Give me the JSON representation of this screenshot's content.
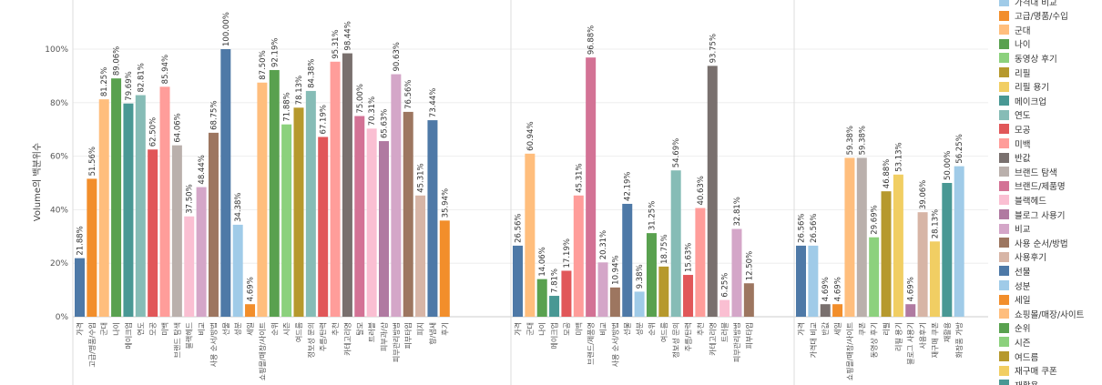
{
  "chart_data": {
    "type": "bar",
    "ylabel": "Volume의 백분위수",
    "ylim": [
      0,
      100
    ],
    "yticks": [
      "0%",
      "20%",
      "40%",
      "60%",
      "80%",
      "100%"
    ],
    "grid": true,
    "legend_position": "right",
    "panels": [
      {
        "bars": [
          {
            "category": "가격",
            "value": 21.88,
            "label": "21.88%",
            "color": "#4e79a7"
          },
          {
            "category": "고급/명품/수입",
            "value": 51.56,
            "label": "51.56%",
            "color": "#f28e2b"
          },
          {
            "category": "군대",
            "value": 81.25,
            "label": "81.25%",
            "color": "#ffbe7d"
          },
          {
            "category": "나이",
            "value": 89.06,
            "label": "89.06%",
            "color": "#59a14f"
          },
          {
            "category": "메이크업",
            "value": 79.69,
            "label": "79.69%",
            "color": "#499894"
          },
          {
            "category": "연도",
            "value": 82.81,
            "label": "82.81%",
            "color": "#86bcb6"
          },
          {
            "category": "모공",
            "value": 62.5,
            "label": "62.50%",
            "color": "#e15759"
          },
          {
            "category": "미백",
            "value": 85.94,
            "label": "85.94%",
            "color": "#ff9d9a"
          },
          {
            "category": "브랜드 탐색",
            "value": 64.06,
            "label": "64.06%",
            "color": "#bab0ac"
          },
          {
            "category": "블랙헤드",
            "value": 37.5,
            "label": "37.50%",
            "color": "#fabfd2"
          },
          {
            "category": "비교",
            "value": 48.44,
            "label": "48.44%",
            "color": "#d4a6c8"
          },
          {
            "category": "사용 순서/방법",
            "value": 68.75,
            "label": "68.75%",
            "color": "#9d7660"
          },
          {
            "category": "선물",
            "value": 100.0,
            "label": "100.00%",
            "color": "#4e79a7"
          },
          {
            "category": "성분",
            "value": 34.38,
            "label": "34.38%",
            "color": "#a0cbe8"
          },
          {
            "category": "세일",
            "value": 4.69,
            "label": "4.69%",
            "color": "#f28e2b"
          },
          {
            "category": "쇼핑몰/매장/사이트",
            "value": 87.5,
            "label": "87.50%",
            "color": "#ffbe7d"
          },
          {
            "category": "순위",
            "value": 92.19,
            "label": "92.19%",
            "color": "#59a14f"
          },
          {
            "category": "시즌",
            "value": 71.88,
            "label": "71.88%",
            "color": "#8cd17d"
          },
          {
            "category": "여드름",
            "value": 78.13,
            "label": "78.13%",
            "color": "#b6992d"
          },
          {
            "category": "정보성 문의",
            "value": 84.38,
            "label": "84.38%",
            "color": "#86bcb6"
          },
          {
            "category": "주름/탄력",
            "value": 67.19,
            "label": "67.19%",
            "color": "#e15759"
          },
          {
            "category": "추천",
            "value": 95.31,
            "label": "95.31%",
            "color": "#ff9d9a"
          },
          {
            "category": "카테고리명",
            "value": 98.44,
            "label": "98.44%",
            "color": "#79706e"
          },
          {
            "category": "탈모",
            "value": 75.0,
            "label": "75.00%",
            "color": "#d37295"
          },
          {
            "category": "트러블",
            "value": 70.31,
            "label": "70.31%",
            "color": "#fabfd2"
          },
          {
            "category": "피부과/샵",
            "value": 65.63,
            "label": "65.63%",
            "color": "#b07aa1"
          },
          {
            "category": "피부관리방법",
            "value": 90.63,
            "label": "90.63%",
            "color": "#d4a6c8"
          },
          {
            "category": "피부타입",
            "value": 76.56,
            "label": "76.56%",
            "color": "#9d7660"
          },
          {
            "category": "피지",
            "value": 45.31,
            "label": "45.31%",
            "color": "#d7b5a6"
          },
          {
            "category": "향/냄새",
            "value": 73.44,
            "label": "73.44%",
            "color": "#4e79a7"
          },
          {
            "category": "후기",
            "value": 35.94,
            "label": "35.94%",
            "color": "#f28e2b"
          }
        ]
      },
      {
        "bars": [
          {
            "category": "가격",
            "value": 26.56,
            "label": "26.56%",
            "color": "#4e79a7"
          },
          {
            "category": "군대",
            "value": 60.94,
            "label": "60.94%",
            "color": "#ffbe7d"
          },
          {
            "category": "나이",
            "value": 14.06,
            "label": "14.06%",
            "color": "#59a14f"
          },
          {
            "category": "메이크업",
            "value": 7.81,
            "label": "7.81%",
            "color": "#499894"
          },
          {
            "category": "모공",
            "value": 17.19,
            "label": "17.19%",
            "color": "#e15759"
          },
          {
            "category": "미백",
            "value": 45.31,
            "label": "45.31%",
            "color": "#ff9d9a"
          },
          {
            "category": "브랜드/제품명",
            "value": 96.88,
            "label": "96.88%",
            "color": "#d37295"
          },
          {
            "category": "비교",
            "value": 20.31,
            "label": "20.31%",
            "color": "#d4a6c8"
          },
          {
            "category": "사용 순서/방법",
            "value": 10.94,
            "label": "10.94%",
            "color": "#9d7660"
          },
          {
            "category": "선물",
            "value": 42.19,
            "label": "42.19%",
            "color": "#4e79a7"
          },
          {
            "category": "성분",
            "value": 9.38,
            "label": "9.38%",
            "color": "#a0cbe8"
          },
          {
            "category": "순위",
            "value": 31.25,
            "label": "31.25%",
            "color": "#59a14f"
          },
          {
            "category": "여드름",
            "value": 18.75,
            "label": "18.75%",
            "color": "#b6992d"
          },
          {
            "category": "정보성 문의",
            "value": 54.69,
            "label": "54.69%",
            "color": "#86bcb6"
          },
          {
            "category": "주름/탄력",
            "value": 15.63,
            "label": "15.63%",
            "color": "#e15759"
          },
          {
            "category": "추천",
            "value": 40.63,
            "label": "40.63%",
            "color": "#ff9d9a"
          },
          {
            "category": "카테고리명",
            "value": 93.75,
            "label": "93.75%",
            "color": "#79706e"
          },
          {
            "category": "트러블",
            "value": 6.25,
            "label": "6.25%",
            "color": "#fabfd2"
          },
          {
            "category": "피부관리방법",
            "value": 32.81,
            "label": "32.81%",
            "color": "#d4a6c8"
          },
          {
            "category": "피부타입",
            "value": 12.5,
            "label": "12.50%",
            "color": "#9d7660"
          }
        ]
      },
      {
        "bars": [
          {
            "category": "가격",
            "value": 26.56,
            "label": "26.56%",
            "color": "#4e79a7"
          },
          {
            "category": "가격대 비교",
            "value": 26.56,
            "label": "26.56%",
            "color": "#a0cbe8"
          },
          {
            "category": "반값",
            "value": 4.69,
            "label": "4.69%",
            "color": "#79706e"
          },
          {
            "category": "세일",
            "value": 4.69,
            "label": "4.69%",
            "color": "#f28e2b"
          },
          {
            "category": "쇼핑몰/매장/사이트",
            "value": 59.38,
            "label": "59.38%",
            "color": "#ffbe7d"
          },
          {
            "category": "쿠폰",
            "value": 59.38,
            "label": "59.38%",
            "color": "#bab0ac"
          },
          {
            "category": "동영상 후기",
            "value": 29.69,
            "label": "29.69%",
            "color": "#8cd17d"
          },
          {
            "category": "리필",
            "value": 46.88,
            "label": "46.88%",
            "color": "#b6992d"
          },
          {
            "category": "리필 용기",
            "value": 53.13,
            "label": "53.13%",
            "color": "#f1ce63"
          },
          {
            "category": "블로그 사용기",
            "value": 4.69,
            "label": "4.69%",
            "color": "#b07aa1"
          },
          {
            "category": "사용후기",
            "value": 39.06,
            "label": "39.06%",
            "color": "#d7b5a6"
          },
          {
            "category": "재구매 쿠폰",
            "value": 28.13,
            "label": "28.13%",
            "color": "#f1ce63"
          },
          {
            "category": "재활용",
            "value": 50.0,
            "label": "50.00%",
            "color": "#499894"
          },
          {
            "category": "화장품 가방",
            "value": 56.25,
            "label": "56.25%",
            "color": "#a0cbe8"
          }
        ]
      }
    ],
    "legend": [
      {
        "label": "가격대 비교",
        "color": "#a0cbe8"
      },
      {
        "label": "고급/명품/수입",
        "color": "#f28e2b"
      },
      {
        "label": "군대",
        "color": "#ffbe7d"
      },
      {
        "label": "나이",
        "color": "#59a14f"
      },
      {
        "label": "동영상 후기",
        "color": "#8cd17d"
      },
      {
        "label": "리필",
        "color": "#b6992d"
      },
      {
        "label": "리필 용기",
        "color": "#f1ce63"
      },
      {
        "label": "메이크업",
        "color": "#499894"
      },
      {
        "label": "연도",
        "color": "#86bcb6"
      },
      {
        "label": "모공",
        "color": "#e15759"
      },
      {
        "label": "미백",
        "color": "#ff9d9a"
      },
      {
        "label": "반값",
        "color": "#79706e"
      },
      {
        "label": "브랜드 탐색",
        "color": "#bab0ac"
      },
      {
        "label": "브랜드/제품명",
        "color": "#d37295"
      },
      {
        "label": "블랙헤드",
        "color": "#fabfd2"
      },
      {
        "label": "블로그 사용기",
        "color": "#b07aa1"
      },
      {
        "label": "비교",
        "color": "#d4a6c8"
      },
      {
        "label": "사용 순서/방법",
        "color": "#9d7660"
      },
      {
        "label": "사용후기",
        "color": "#d7b5a6"
      },
      {
        "label": "선물",
        "color": "#4e79a7"
      },
      {
        "label": "성분",
        "color": "#a0cbe8"
      },
      {
        "label": "세일",
        "color": "#f28e2b"
      },
      {
        "label": "쇼핑몰/매장/사이트",
        "color": "#ffbe7d"
      },
      {
        "label": "순위",
        "color": "#59a14f"
      },
      {
        "label": "시즌",
        "color": "#8cd17d"
      },
      {
        "label": "여드름",
        "color": "#b6992d"
      },
      {
        "label": "재구매 쿠폰",
        "color": "#f1ce63"
      },
      {
        "label": "재활용",
        "color": "#499894"
      }
    ]
  }
}
